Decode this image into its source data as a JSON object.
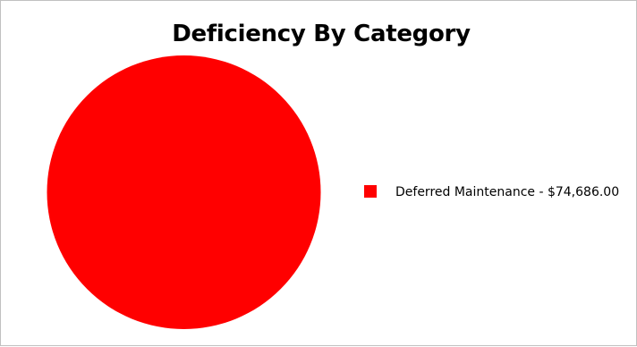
{
  "chart_data": {
    "type": "pie",
    "title": "Deficiency By Category",
    "slices": [
      {
        "label": "Deferred Maintenance",
        "value": 74686.0,
        "value_text": "$74,686.00",
        "color": "#ff0000"
      }
    ],
    "legend_labels": [
      "Deferred Maintenance - $74,686.00"
    ],
    "legend_position": "right",
    "background_color": "#ffffff",
    "border_color": "#c0c0c0"
  }
}
